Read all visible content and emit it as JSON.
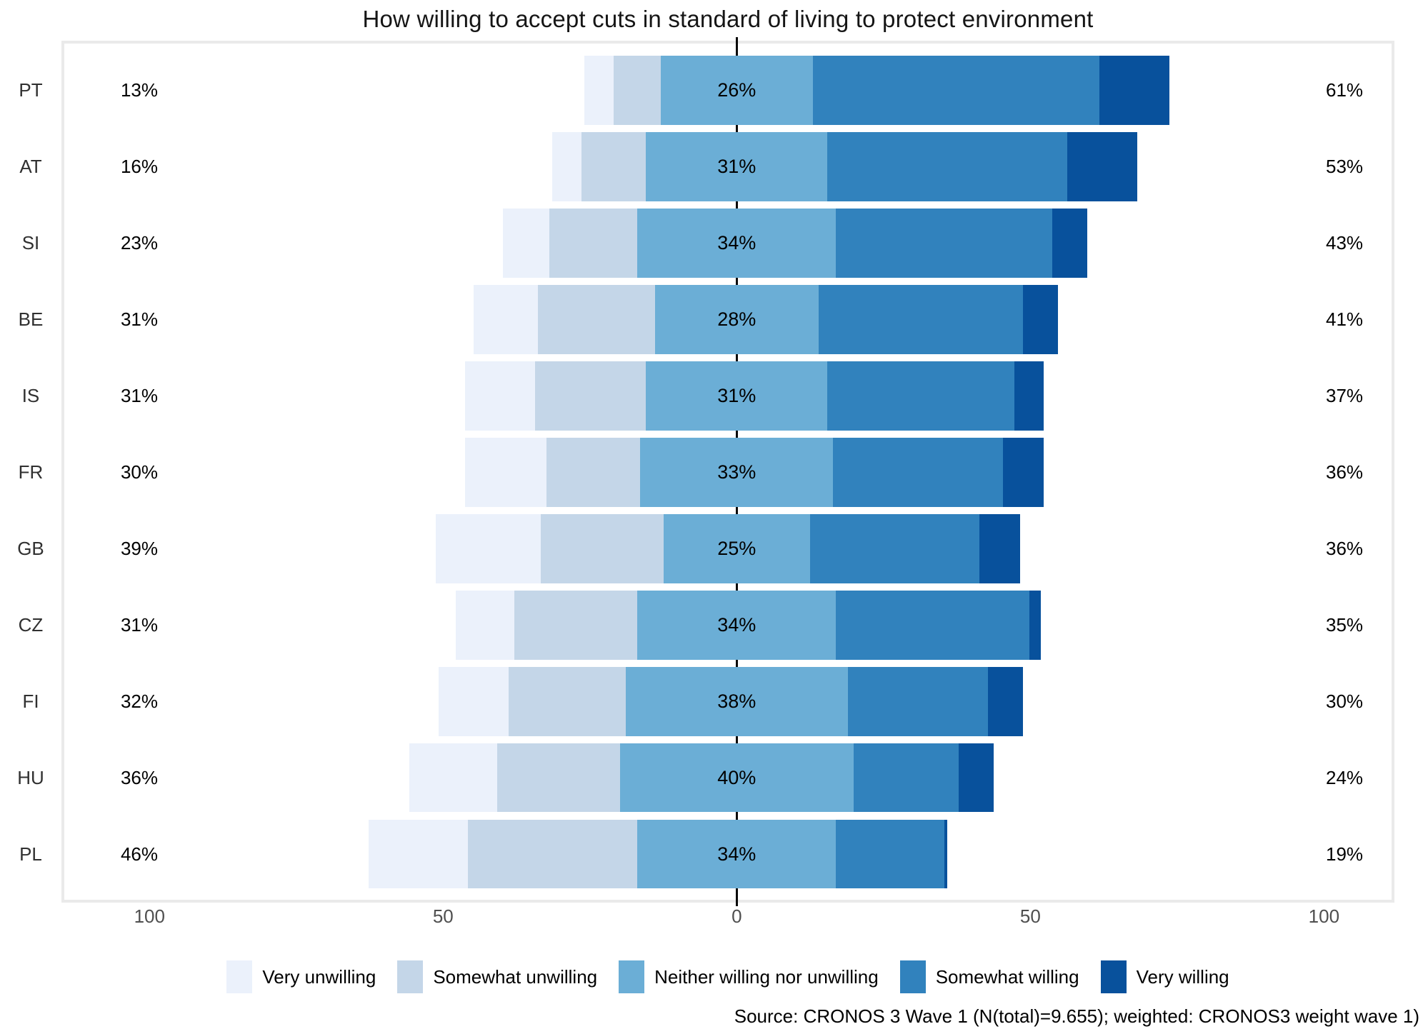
{
  "header": {
    "title": "How willing to accept cuts in standard of living to protect environment"
  },
  "source_note": "Source: CRONOS 3 Wave 1 (N(total)=9.655); weighted: CRONOS3 weight wave 1)",
  "colors": {
    "very_unwilling": "#EBF1FB",
    "somewhat_unwilling": "#C4D6E8",
    "neither": "#6BAED6",
    "somewhat_willing": "#3182BD",
    "very_willing": "#08519C",
    "zero_line": "#0a0a0a",
    "panel_border": "#eaeaea",
    "axis_text": "#4f4f4f"
  },
  "chart_data": {
    "type": "bar",
    "variant": "diverging-stacked-horizontal",
    "title": "How willing to accept cuts in standard of living to protect environment",
    "categories": [
      "PT",
      "AT",
      "SI",
      "BE",
      "IS",
      "FR",
      "GB",
      "CZ",
      "FI",
      "HU",
      "PL"
    ],
    "series": [
      {
        "name": "Very unwilling",
        "color": "#EBF1FB",
        "values": [
          5,
          5,
          8,
          11,
          12,
          14,
          18,
          10,
          12,
          15,
          17
        ]
      },
      {
        "name": "Somewhat unwilling",
        "color": "#C4D6E8",
        "values": [
          8,
          11,
          15,
          20,
          19,
          16,
          21,
          21,
          20,
          21,
          29
        ]
      },
      {
        "name": "Neither willing nor unwilling",
        "color": "#6BAED6",
        "values": [
          26,
          31,
          34,
          28,
          31,
          33,
          25,
          34,
          38,
          40,
          34
        ]
      },
      {
        "name": "Somewhat willing",
        "color": "#3182BD",
        "values": [
          49,
          41,
          37,
          35,
          32,
          29,
          29,
          33,
          24,
          18,
          18.5
        ]
      },
      {
        "name": "Very willing",
        "color": "#08519C",
        "values": [
          12,
          12,
          6,
          6,
          5,
          7,
          7,
          2,
          6,
          6,
          0.5
        ]
      }
    ],
    "labels": {
      "left_unwilling_total": [
        "13%",
        "16%",
        "23%",
        "31%",
        "31%",
        "30%",
        "39%",
        "31%",
        "32%",
        "36%",
        "46%"
      ],
      "center_neither": [
        "26%",
        "31%",
        "34%",
        "28%",
        "31%",
        "33%",
        "25%",
        "34%",
        "38%",
        "40%",
        "34%"
      ],
      "right_willing_total": [
        "61%",
        "53%",
        "43%",
        "41%",
        "37%",
        "36%",
        "36%",
        "35%",
        "30%",
        "24%",
        "19%"
      ]
    },
    "axis": {
      "orientation": "horizontal-diverging",
      "range": [
        -115,
        112
      ],
      "ticks": [
        {
          "label": "100",
          "value": -100
        },
        {
          "label": "50",
          "value": -50
        },
        {
          "label": "0",
          "value": 0
        },
        {
          "label": "50",
          "value": 50
        },
        {
          "label": "100",
          "value": 100
        }
      ],
      "zero_centered_series": "Neither willing nor unwilling"
    },
    "grid": false,
    "legend_position": "bottom"
  }
}
